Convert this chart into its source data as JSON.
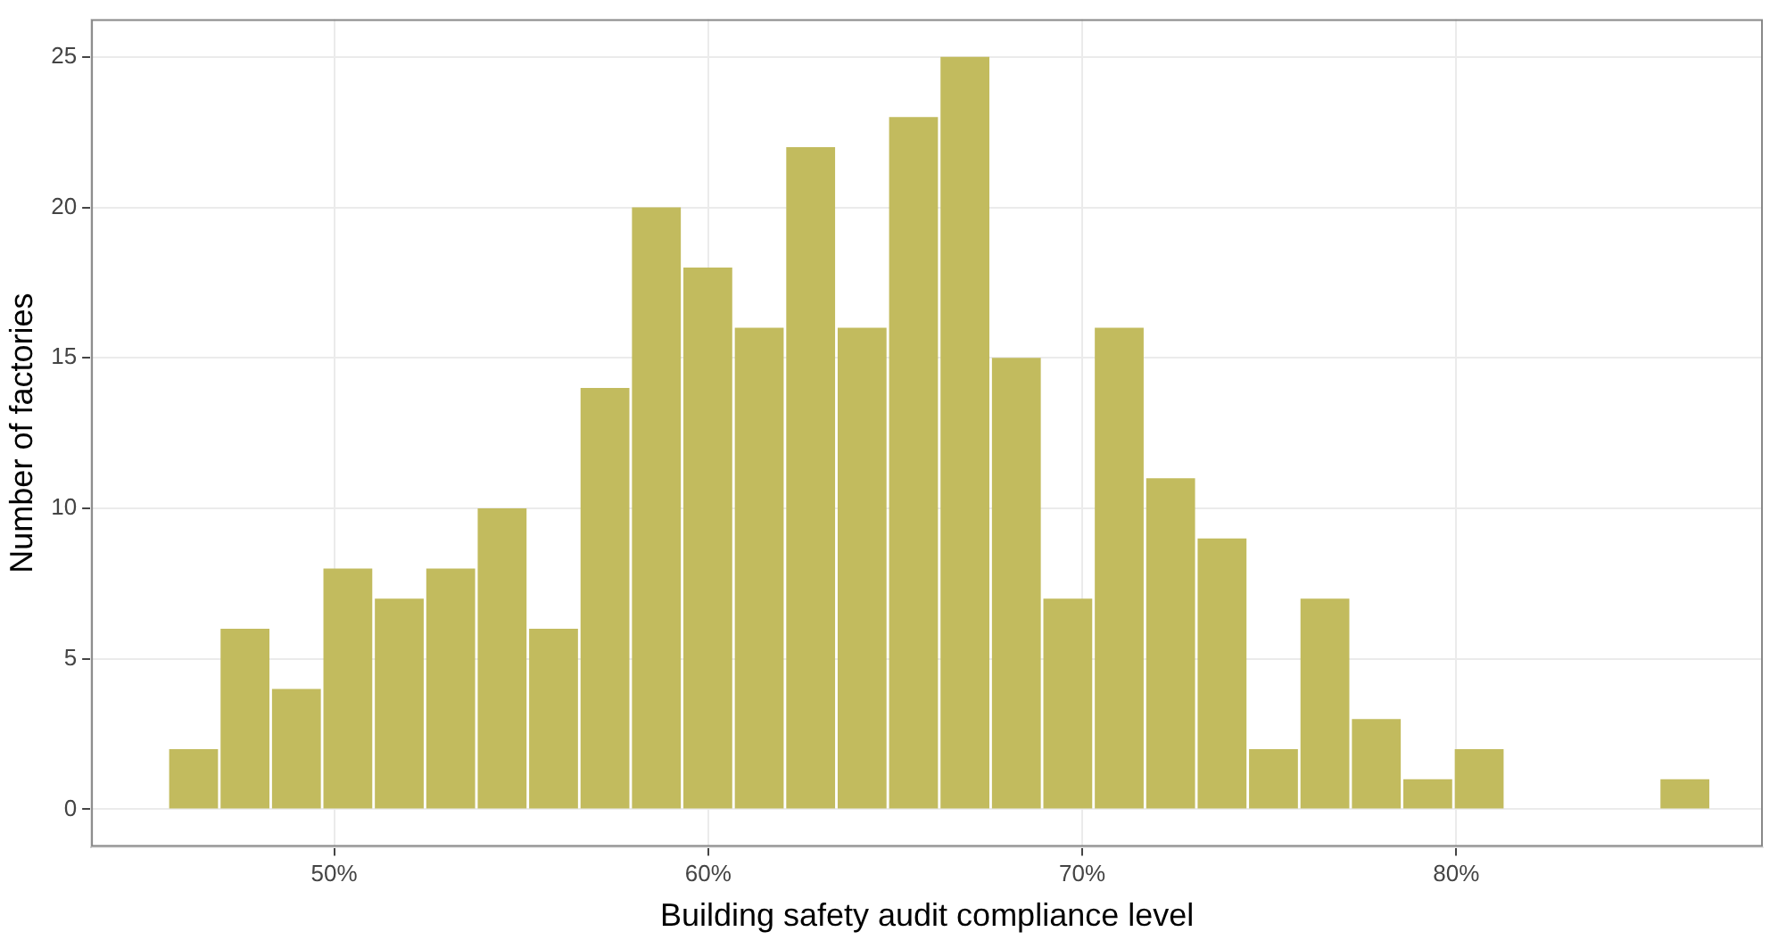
{
  "chart_data": {
    "type": "histogram",
    "xlabel": "Building safety audit compliance level",
    "ylabel": "Number of factories",
    "bins": [
      45.55,
      46.93,
      48.3,
      49.68,
      51.05,
      52.43,
      53.8,
      55.18,
      56.55,
      57.93,
      59.3,
      60.68,
      62.05,
      63.43,
      64.8,
      66.18,
      67.55,
      68.93,
      70.3,
      71.68,
      73.05,
      74.43,
      75.8,
      77.18,
      78.55,
      79.93,
      81.3,
      82.68,
      84.05,
      85.43,
      86.8
    ],
    "values": [
      2,
      6,
      4,
      8,
      7,
      8,
      10,
      6,
      14,
      20,
      18,
      16,
      22,
      16,
      23,
      25,
      15,
      7,
      16,
      11,
      9,
      2,
      7,
      3,
      1,
      2,
      0,
      0,
      0,
      1
    ],
    "color": "#c2bb5e",
    "xlim": [
      43.5,
      88.2
    ],
    "xticks": [
      {
        "value": 50,
        "label": "50%"
      },
      {
        "value": 60,
        "label": "60%"
      },
      {
        "value": 70,
        "label": "70%"
      },
      {
        "value": 80,
        "label": "80%"
      }
    ],
    "ylim": [
      -1.25,
      26.25
    ],
    "yticks": [
      0,
      5,
      10,
      15,
      20,
      25
    ],
    "grid": true,
    "legend": false
  }
}
